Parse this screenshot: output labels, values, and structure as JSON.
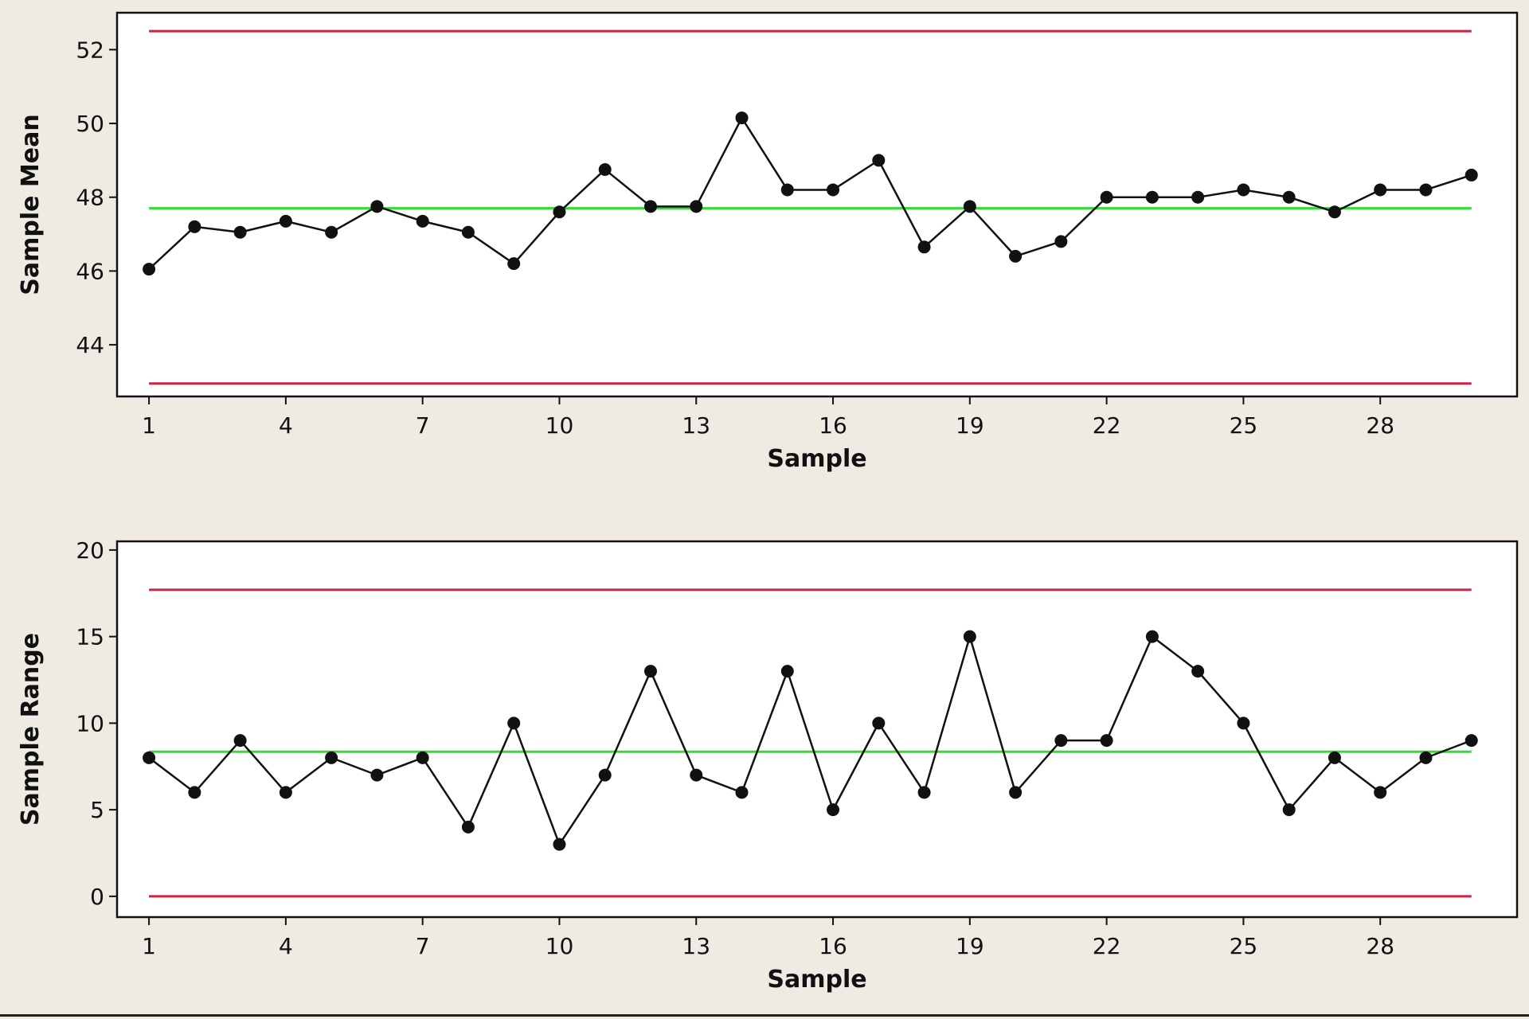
{
  "colors": {
    "background": "#efebe3",
    "plot_background": "#ffffff",
    "control_limit": "#cc2244",
    "center_line": "#33dd33",
    "series": "#111111"
  },
  "chart_data": [
    {
      "type": "line",
      "title": "",
      "xlabel": "Sample",
      "ylabel": "Sample Mean",
      "x": [
        1,
        2,
        3,
        4,
        5,
        6,
        7,
        8,
        9,
        10,
        11,
        12,
        13,
        14,
        15,
        16,
        17,
        18,
        19,
        20,
        21,
        22,
        23,
        24,
        25,
        26,
        27,
        28,
        29,
        30
      ],
      "xlim": [
        0.3,
        31.0
      ],
      "ylim": [
        42.6,
        53.0
      ],
      "xticks": [
        1,
        4,
        7,
        10,
        13,
        16,
        19,
        22,
        25,
        28
      ],
      "yticks": [
        44,
        46,
        48,
        50,
        52
      ],
      "grid": false,
      "series": [
        {
          "values": [
            46.05,
            47.2,
            47.05,
            47.35,
            47.05,
            47.75,
            47.35,
            47.05,
            46.2,
            47.6,
            48.75,
            47.75,
            47.75,
            50.15,
            48.2,
            48.2,
            49.0,
            46.65,
            47.75,
            46.4,
            46.8,
            48.0,
            48.0,
            48.0,
            48.2,
            48.0,
            47.6,
            48.2,
            48.2,
            48.6
          ]
        }
      ],
      "reference_lines": {
        "ucl": 52.5,
        "center": 47.7,
        "lcl": 42.95
      }
    },
    {
      "type": "line",
      "title": "",
      "xlabel": "Sample",
      "ylabel": "Sample Range",
      "x": [
        1,
        2,
        3,
        4,
        5,
        6,
        7,
        8,
        9,
        10,
        11,
        12,
        13,
        14,
        15,
        16,
        17,
        18,
        19,
        20,
        21,
        22,
        23,
        24,
        25,
        26,
        27,
        28,
        29,
        30
      ],
      "xlim": [
        0.3,
        31.0
      ],
      "ylim": [
        -1.2,
        20.5
      ],
      "xticks": [
        1,
        4,
        7,
        10,
        13,
        16,
        19,
        22,
        25,
        28
      ],
      "yticks": [
        0,
        5,
        10,
        15,
        20
      ],
      "grid": false,
      "series": [
        {
          "values": [
            8,
            6,
            9,
            6,
            8,
            7,
            8,
            4,
            10,
            3,
            7,
            13,
            7,
            6,
            13,
            5,
            10,
            6,
            15,
            6,
            9,
            9,
            15,
            13,
            10,
            5,
            8,
            6,
            8,
            9
          ]
        }
      ],
      "reference_lines": {
        "ucl": 17.7,
        "center": 8.35,
        "lcl": 0
      }
    }
  ]
}
